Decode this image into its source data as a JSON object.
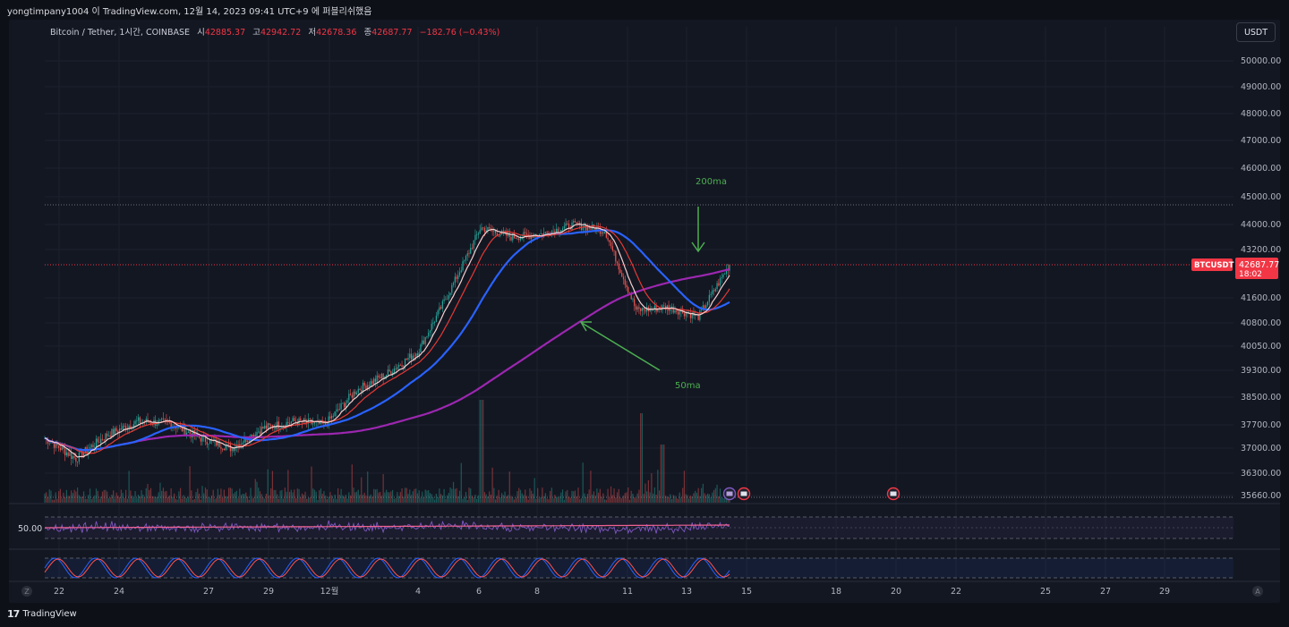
{
  "caption": "yongtimpany1004 이 TradingView.com, 12월 14, 2023 09:41 UTC+9 에 퍼블리쉬했음",
  "legend": {
    "symbol": "Bitcoin / Tether, 1시간, COINBASE",
    "open_label": "시",
    "open": "42885.37",
    "high_label": "고",
    "high": "42942.72",
    "low_label": "저",
    "low": "42678.36",
    "close_label": "종",
    "close": "42687.77",
    "change": "−182.76 (−0.43%)"
  },
  "currency_button": "USDT",
  "price_axis": [
    "50000.00",
    "49000.00",
    "48000.00",
    "47000.00",
    "46000.00",
    "45000.00",
    "44000.00",
    "43200.00",
    "41600.00",
    "40800.00",
    "40050.00",
    "39300.00",
    "38500.00",
    "37700.00",
    "37000.00",
    "36300.00",
    "35660.00"
  ],
  "last_price": {
    "symbol": "BTCUSDT",
    "price": "42687.77",
    "countdown": "18:02",
    "color": "#f23645"
  },
  "time_axis": [
    "22",
    "24",
    "27",
    "29",
    "12월",
    "4",
    "6",
    "8",
    "11",
    "13",
    "15",
    "18",
    "20",
    "22",
    "25",
    "27",
    "29"
  ],
  "annotations": [
    {
      "text": "200ma",
      "color": "#4caf50"
    },
    {
      "text": "50ma",
      "color": "#4caf50"
    }
  ],
  "rsi_level": "50.00",
  "axis_corner_left": "Z",
  "axis_corner_right": "A",
  "brand": {
    "logo": "17",
    "name": "TradingView"
  },
  "colors": {
    "bull": "#26a69a",
    "bear": "#ef5350",
    "ma50": "#9c27b0",
    "ma_blue": "#2962ff",
    "ma_white": "#f5d0d0",
    "ma_red": "#e53935",
    "rsi": "#7e57c2",
    "stoch_k": "#2962ff",
    "stoch_d": "#ff5252"
  },
  "chart_data": {
    "type": "candlestick",
    "timeframe": "1h",
    "y_range": [
      35660,
      50000
    ],
    "x_labels": [
      "22",
      "24",
      "27",
      "29",
      "12월",
      "4",
      "6",
      "8",
      "11",
      "13",
      "15",
      "18",
      "20",
      "22",
      "25",
      "27",
      "29"
    ],
    "close_path": [
      {
        "x": "22",
        "y": 37300
      },
      {
        "x": "23",
        "y": 36700
      },
      {
        "x": "24",
        "y": 37400
      },
      {
        "x": "25",
        "y": 37800
      },
      {
        "x": "26",
        "y": 37750
      },
      {
        "x": "27",
        "y": 37300
      },
      {
        "x": "28",
        "y": 37000
      },
      {
        "x": "29",
        "y": 37600
      },
      {
        "x": "30",
        "y": 37800
      },
      {
        "x": "12월",
        "y": 37700
      },
      {
        "x": "2",
        "y": 38700
      },
      {
        "x": "3",
        "y": 39200
      },
      {
        "x": "4",
        "y": 39900
      },
      {
        "x": "5",
        "y": 41800
      },
      {
        "x": "6",
        "y": 43900
      },
      {
        "x": "7",
        "y": 43600
      },
      {
        "x": "8",
        "y": 43700
      },
      {
        "x": "9",
        "y": 44000
      },
      {
        "x": "10",
        "y": 43800
      },
      {
        "x": "11",
        "y": 41200
      },
      {
        "x": "12",
        "y": 41300
      },
      {
        "x": "13",
        "y": 41000
      },
      {
        "x": "14",
        "y": 42688
      }
    ],
    "series": [
      {
        "name": "200ma",
        "color": "#9c27b0"
      },
      {
        "name": "50ma",
        "color": "#2962ff"
      }
    ]
  }
}
